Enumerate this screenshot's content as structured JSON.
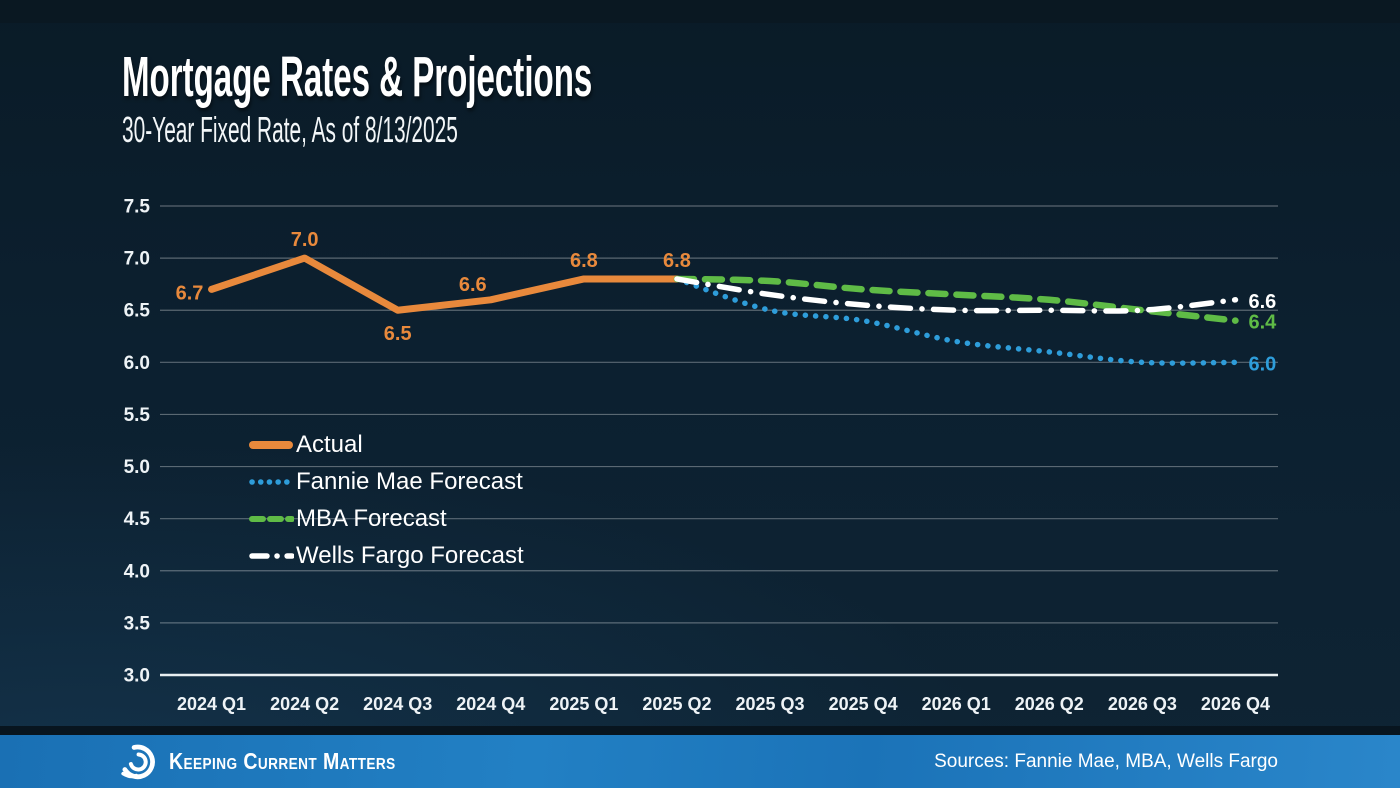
{
  "header": {
    "title": "Mortgage Rates & Projections",
    "subtitle": "30-Year Fixed Rate, As of 8/13/2025"
  },
  "legend": {
    "items": [
      {
        "label": "Actual"
      },
      {
        "label": "Fannie Mae Forecast"
      },
      {
        "label": "MBA Forecast"
      },
      {
        "label": "Wells Fargo Forecast"
      }
    ]
  },
  "footer": {
    "brand": "Keeping Current Matters",
    "sources": "Sources: Fannie Mae, MBA, Wells Fargo"
  },
  "colors": {
    "actual": "#E8893C",
    "fannie_mae": "#2E9DDA",
    "mba": "#5FBB46",
    "wells_fargo": "#FFFFFF",
    "footer_bar": "#1B75BB",
    "background": "#0C2030",
    "gridline": "rgba(255,255,255,0.32)",
    "axis_line": "#E9EFF2"
  },
  "chart_data": {
    "type": "line",
    "title": "Mortgage Rates & Projections",
    "subtitle": "30-Year Fixed Rate, As of 8/13/2025",
    "categories": [
      "2024 Q1",
      "2024 Q2",
      "2024 Q3",
      "2024 Q4",
      "2025 Q1",
      "2025 Q2",
      "2025 Q3",
      "2025 Q4",
      "2026 Q1",
      "2026 Q2",
      "2026 Q3",
      "2026 Q4"
    ],
    "xlabel": "",
    "ylabel": "",
    "ylim": [
      3.0,
      7.5
    ],
    "ytick_step": 0.5,
    "grid": true,
    "legend_position": "inside-left",
    "series": [
      {
        "name": "Actual",
        "style": "solid",
        "color": "#E8893C",
        "smooth": false,
        "start_index": 0,
        "values": [
          6.7,
          7.0,
          6.5,
          6.6,
          6.8,
          6.8
        ]
      },
      {
        "name": "Fannie Mae Forecast",
        "style": "dotted",
        "color": "#2E9DDA",
        "smooth": true,
        "start_index": 5,
        "values": [
          6.8,
          6.5,
          6.4,
          6.2,
          6.1,
          6.0,
          6.0
        ]
      },
      {
        "name": "MBA Forecast",
        "style": "dashed",
        "color": "#5FBB46",
        "smooth": true,
        "start_index": 5,
        "values": [
          6.8,
          6.78,
          6.7,
          6.65,
          6.6,
          6.5,
          6.4
        ]
      },
      {
        "name": "Wells Fargo Forecast",
        "style": "dashdot",
        "color": "#FFFFFF",
        "smooth": true,
        "start_index": 5,
        "values": [
          6.8,
          6.65,
          6.55,
          6.5,
          6.5,
          6.5,
          6.6
        ]
      }
    ],
    "point_labels": [
      {
        "text": "6.7",
        "series": 0,
        "index": 0,
        "pos": "left",
        "color": "#E8893C"
      },
      {
        "text": "7.0",
        "series": 0,
        "index": 1,
        "pos": "above",
        "color": "#E8893C"
      },
      {
        "text": "6.5",
        "series": 0,
        "index": 2,
        "pos": "below",
        "color": "#E8893C"
      },
      {
        "text": "6.6",
        "series": 0,
        "index": 3,
        "pos": "upleft",
        "color": "#E8893C"
      },
      {
        "text": "6.8",
        "series": 0,
        "index": 4,
        "pos": "above",
        "color": "#E8893C"
      },
      {
        "text": "6.8",
        "series": 0,
        "index": 5,
        "pos": "above",
        "color": "#E8893C"
      },
      {
        "text": "6.6",
        "series": 3,
        "index": 6,
        "pos": "right",
        "color": "#FFFFFF"
      },
      {
        "text": "6.4",
        "series": 2,
        "index": 6,
        "pos": "right",
        "color": "#5FBB46"
      },
      {
        "text": "6.0",
        "series": 1,
        "index": 6,
        "pos": "right",
        "color": "#2E9DDA"
      }
    ]
  }
}
